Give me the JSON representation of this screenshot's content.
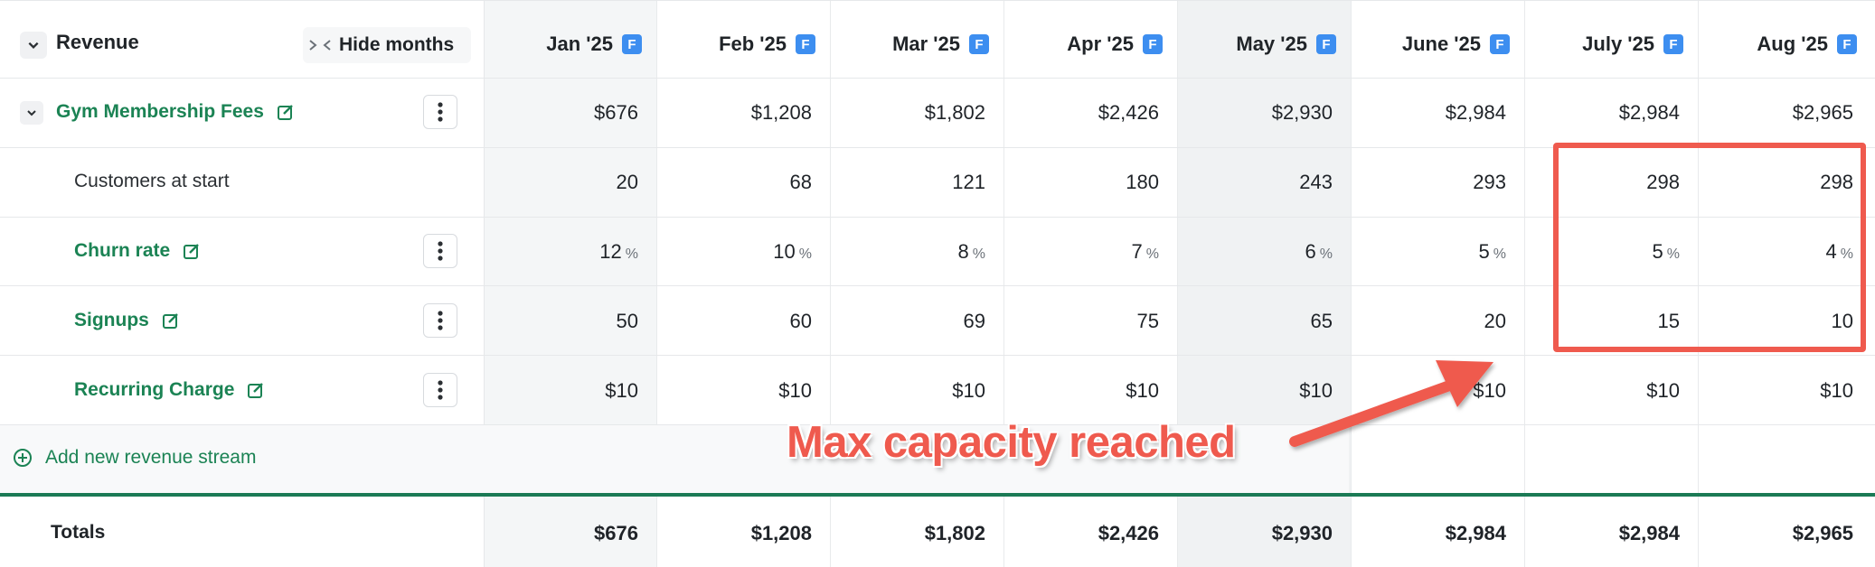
{
  "header": {
    "title": "Revenue",
    "hide_months_label": "Hide months",
    "months": [
      {
        "label": "Jan '25",
        "badge": "F"
      },
      {
        "label": "Feb '25",
        "badge": "F"
      },
      {
        "label": "Mar '25",
        "badge": "F"
      },
      {
        "label": "Apr '25",
        "badge": "F"
      },
      {
        "label": "May '25",
        "badge": "F"
      },
      {
        "label": "June '25",
        "badge": "F"
      },
      {
        "label": "July '25",
        "badge": "F"
      },
      {
        "label": "Aug '25",
        "badge": "F"
      }
    ]
  },
  "rows": {
    "gym": {
      "label": "Gym Membership Fees",
      "values": [
        "$676",
        "$1,208",
        "$1,802",
        "$2,426",
        "$2,930",
        "$2,984",
        "$2,984",
        "$2,965"
      ]
    },
    "customers": {
      "label": "Customers at start",
      "values": [
        "20",
        "68",
        "121",
        "180",
        "243",
        "293",
        "298",
        "298"
      ]
    },
    "churn": {
      "label": "Churn rate",
      "values": [
        "12",
        "10",
        "8",
        "7",
        "6",
        "5",
        "5",
        "4"
      ],
      "unit": "%"
    },
    "signups": {
      "label": "Signups",
      "values": [
        "50",
        "60",
        "69",
        "75",
        "65",
        "20",
        "15",
        "10"
      ]
    },
    "recurring": {
      "label": "Recurring Charge",
      "values": [
        "$10",
        "$10",
        "$10",
        "$10",
        "$10",
        "$10",
        "$10",
        "$10"
      ]
    }
  },
  "add_stream_label": "Add new revenue stream",
  "totals": {
    "label": "Totals",
    "values": [
      "$676",
      "$1,208",
      "$1,802",
      "$2,426",
      "$2,930",
      "$2,984",
      "$2,984",
      "$2,965"
    ]
  },
  "annotation": {
    "text": "Max capacity reached"
  },
  "colors": {
    "accent_green": "#1b8354",
    "badge_blue": "#3d8ef0",
    "annotation_red": "#ef5a4e"
  }
}
